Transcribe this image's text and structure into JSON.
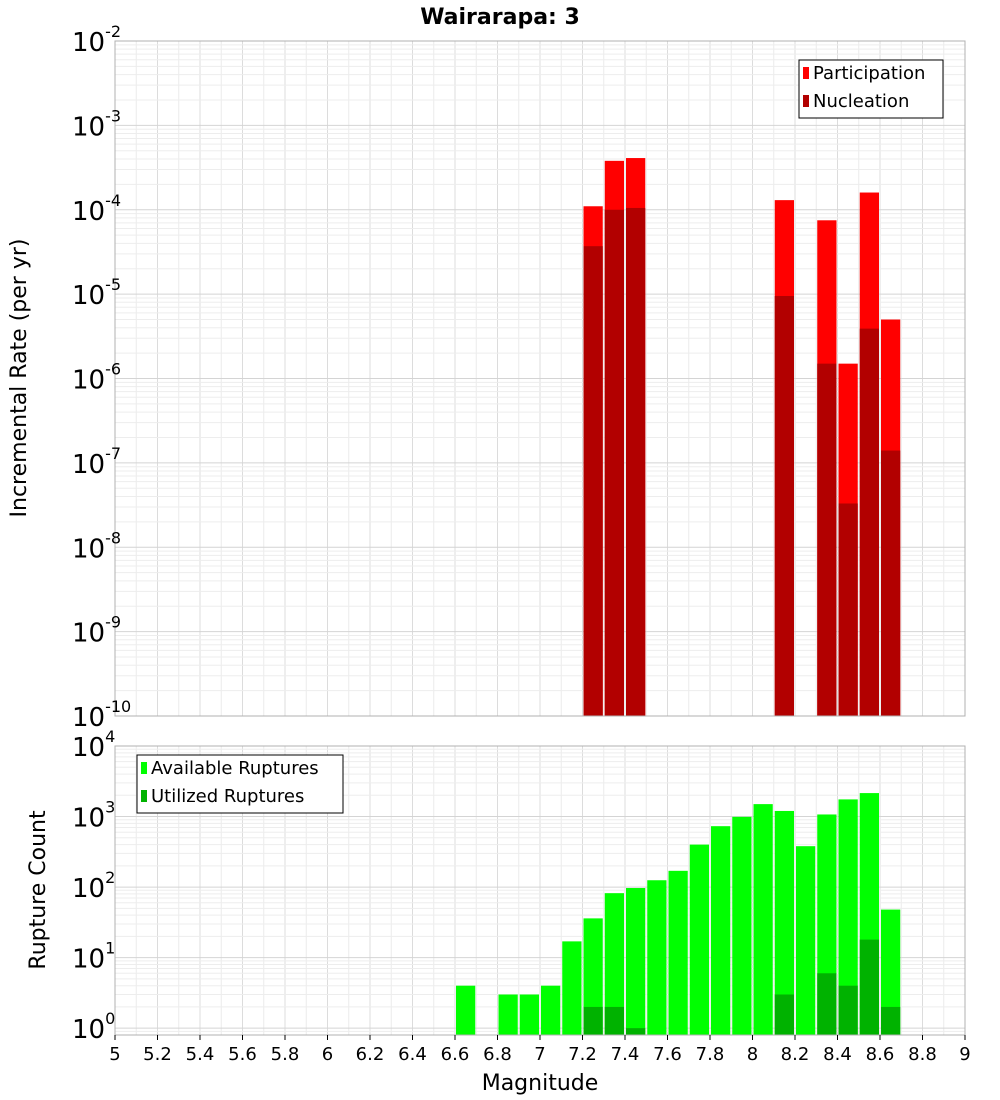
{
  "chart_data": {
    "title": "Wairarapa: 3",
    "xlabel": "Magnitude",
    "x_ticks": [
      "5",
      "5.2",
      "5.4",
      "5.6",
      "5.8",
      "6",
      "6.2",
      "6.4",
      "6.6",
      "6.8",
      "7",
      "7.2",
      "7.4",
      "7.6",
      "7.8",
      "8",
      "8.2",
      "8.4",
      "8.6",
      "8.8",
      "9"
    ],
    "xlim": [
      5,
      9
    ],
    "bar_width": 0.1,
    "grid": true,
    "panels": [
      {
        "type": "bar",
        "ylabel": "Incremental Rate (per yr)",
        "y_scale": "log",
        "ylim": [
          1e-10,
          0.01
        ],
        "y_tick_labels": [
          {
            "base": "10",
            "exp": "-10"
          },
          {
            "base": "10",
            "exp": "-9"
          },
          {
            "base": "10",
            "exp": "-8"
          },
          {
            "base": "10",
            "exp": "-7"
          },
          {
            "base": "10",
            "exp": "-6"
          },
          {
            "base": "10",
            "exp": "-5"
          },
          {
            "base": "10",
            "exp": "-4"
          },
          {
            "base": "10",
            "exp": "-3"
          },
          {
            "base": "10",
            "exp": "-2"
          }
        ],
        "legend_position": "top-right",
        "series": [
          {
            "name": "Participation",
            "color": "#ff0000",
            "x": [
              7.25,
              7.35,
              7.45,
              8.15,
              8.35,
              8.45,
              8.55,
              8.65
            ],
            "values": [
              0.00011,
              0.00038,
              0.00041,
              0.00013,
              7.5e-05,
              1.5e-06,
              0.00016,
              5e-06
            ]
          },
          {
            "name": "Nucleation",
            "color": "#b20000",
            "x": [
              7.25,
              7.35,
              7.45,
              8.15,
              8.35,
              8.45,
              8.55,
              8.65
            ],
            "values": [
              3.7e-05,
              0.0001,
              0.000105,
              9.5e-06,
              1.5e-06,
              3.3e-08,
              3.9e-06,
              1.4e-07
            ]
          }
        ]
      },
      {
        "type": "bar",
        "ylabel": "Rupture Count",
        "y_scale": "log",
        "ylim": [
          0.8,
          10000
        ],
        "y_tick_labels": [
          {
            "base": "10",
            "exp": "0"
          },
          {
            "base": "10",
            "exp": "1"
          },
          {
            "base": "10",
            "exp": "2"
          },
          {
            "base": "10",
            "exp": "3"
          },
          {
            "base": "10",
            "exp": "4"
          }
        ],
        "legend_position": "top-left",
        "series": [
          {
            "name": "Available Ruptures",
            "color": "#00ff00",
            "x": [
              6.65,
              6.85,
              6.95,
              7.05,
              7.15,
              7.25,
              7.35,
              7.45,
              7.55,
              7.65,
              7.75,
              7.85,
              7.95,
              8.05,
              8.15,
              8.25,
              8.35,
              8.45,
              8.55,
              8.65
            ],
            "values": [
              4,
              3,
              3,
              4,
              17,
              36,
              82,
              97,
              125,
              170,
              400,
              730,
              990,
              1500,
              1200,
              380,
              1070,
              1750,
              2150,
              48
            ]
          },
          {
            "name": "Utilized Ruptures",
            "color": "#00b200",
            "x": [
              7.25,
              7.35,
              7.45,
              8.15,
              8.35,
              8.45,
              8.55,
              8.65
            ],
            "values": [
              2,
              2,
              1,
              3,
              6,
              4,
              18,
              2
            ]
          }
        ]
      }
    ]
  }
}
